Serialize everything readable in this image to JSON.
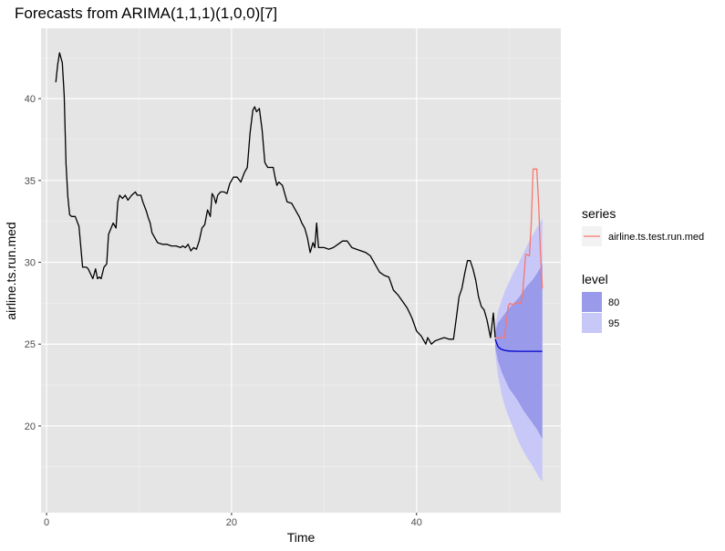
{
  "chart_data": {
    "type": "line",
    "title": "Forecasts from ARIMA(1,1,1)(1,0,0)[7]",
    "xlabel": "Time",
    "ylabel": "airline.ts.run.med",
    "xlim": [
      -0.6,
      55.6
    ],
    "ylim": [
      14.7,
      44.3
    ],
    "x_ticks": [
      0,
      20,
      40
    ],
    "y_ticks": [
      20,
      25,
      30,
      35,
      40
    ],
    "grid": true,
    "legend_position": "right",
    "colors": {
      "panel": "#e5e5e5",
      "grid_major": "#ffffff",
      "grid_minor": "#f2f2f2",
      "history": "#000000",
      "forecast_mean": "#0000cc",
      "test_series": "#f8766d",
      "band80": "#9a9aea",
      "band95": "#c8c8f8"
    },
    "series": [
      {
        "name": "",
        "role": "history",
        "x": [
          1,
          1.2,
          1.4,
          1.7,
          1.9,
          2.1,
          2.3,
          2.5,
          2.7,
          2.9,
          3.1,
          3.5,
          3.9,
          4.1,
          4.3,
          4.5,
          5,
          5.3,
          5.5,
          5.7,
          5.9,
          6.2,
          6.5,
          6.7,
          7.2,
          7.5,
          7.7,
          7.9,
          8.2,
          8.5,
          8.8,
          9.2,
          9.6,
          9.8,
          10.2,
          10.4,
          10.6,
          10.8,
          11,
          11.2,
          11.4,
          11.6,
          12,
          12.5,
          13,
          13.5,
          14,
          14.5,
          14.7,
          15,
          15.3,
          15.6,
          15.9,
          16.2,
          16.5,
          16.8,
          17.1,
          17.4,
          17.7,
          17.9,
          18.1,
          18.3,
          18.5,
          18.8,
          19.2,
          19.5,
          19.8,
          20.2,
          20.6,
          21,
          21.4,
          21.7,
          22,
          22.3,
          22.5,
          22.7,
          23,
          23.3,
          23.6,
          23.9,
          24.1,
          24.3,
          24.5,
          24.7,
          24.9,
          25.1,
          25.3,
          25.5,
          26,
          26.5,
          27,
          27.3,
          27.6,
          27.9,
          28.2,
          28.5,
          28.8,
          29,
          29.2,
          29.4,
          29.7,
          30,
          30.5,
          31,
          31.5,
          32,
          32.5,
          33,
          33.5,
          34,
          34.5,
          35,
          35.5,
          36,
          36.5,
          37,
          37.5,
          38,
          38.5,
          39,
          39.5,
          40,
          40.5,
          41,
          41.2,
          41.6,
          42,
          42.5,
          43,
          43.5,
          44,
          44.3,
          44.6,
          44.9,
          45.2,
          45.5,
          45.8,
          46.1,
          46.4,
          46.7,
          47,
          47.3,
          47.6,
          48,
          48.3,
          48.5
        ],
        "y": [
          41,
          42.1,
          42.8,
          42.2,
          40.2,
          36,
          34,
          32.9,
          32.8,
          32.8,
          32.8,
          32.2,
          29.7,
          29.7,
          29.7,
          29.6,
          29,
          29.6,
          29,
          29.1,
          29,
          29.7,
          29.9,
          31.7,
          32.4,
          32.1,
          33.7,
          34.1,
          33.9,
          34.1,
          33.8,
          34.1,
          34.3,
          34.1,
          34.1,
          33.7,
          33.4,
          33.1,
          32.7,
          32.4,
          31.8,
          31.6,
          31.2,
          31.1,
          31.1,
          31,
          31,
          30.9,
          31,
          30.9,
          31.1,
          30.7,
          30.9,
          30.8,
          31.3,
          32.1,
          32.3,
          33.2,
          32.8,
          34.2,
          34,
          33.6,
          34.1,
          34.3,
          34.3,
          34.2,
          34.8,
          35.2,
          35.2,
          34.9,
          35.5,
          35.8,
          37.9,
          39.3,
          39.5,
          39.2,
          39.4,
          38.1,
          36.1,
          35.8,
          35.8,
          35.8,
          35.8,
          35.2,
          34.7,
          34.9,
          34.8,
          34.7,
          33.7,
          33.6,
          33.1,
          32.8,
          32.4,
          32.1,
          31.5,
          30.6,
          31.2,
          30.9,
          32.4,
          30.9,
          30.9,
          30.9,
          30.8,
          30.9,
          31.1,
          31.3,
          31.3,
          30.9,
          30.8,
          30.7,
          30.6,
          30.4,
          29.9,
          29.4,
          29.2,
          29.1,
          28.3,
          28,
          27.6,
          27.2,
          26.6,
          25.8,
          25.5,
          25,
          25.4,
          25,
          25.2,
          25.3,
          25.4,
          25.3,
          25.3,
          26.6,
          27.9,
          28.4,
          29.3,
          30.1,
          30.1,
          29.6,
          28.9,
          27.9,
          27.3,
          27.1,
          26.5,
          25.4,
          26.9,
          25.4
        ]
      },
      {
        "name": "",
        "role": "forecast-mean",
        "x": [
          48.5,
          48.8,
          49.1,
          49.5,
          50,
          51,
          52,
          53,
          53.6
        ],
        "y": [
          25.3,
          24.85,
          24.7,
          24.62,
          24.58,
          24.56,
          24.56,
          24.56,
          24.56
        ]
      },
      {
        "name": "airline.ts.test.run.med",
        "role": "test",
        "x": [
          48.5,
          48.9,
          49.2,
          49.5,
          49.7,
          49.9,
          50.1,
          50.4,
          50.7,
          51,
          51.3,
          51.5,
          51.8,
          52.2,
          52.4,
          52.6,
          52.8,
          53,
          53.2,
          53.4,
          53.6
        ],
        "y": [
          25.4,
          25.4,
          25.4,
          25.4,
          26.3,
          27.3,
          27.5,
          27.4,
          27.5,
          27.5,
          27.5,
          28.3,
          30.5,
          30.4,
          32.3,
          35.7,
          35.7,
          35.7,
          33.5,
          30.5,
          28.4
        ]
      }
    ],
    "forecast_bands": {
      "x": [
        48.5,
        48.8,
        49.2,
        49.6,
        50,
        50.5,
        51,
        51.5,
        52,
        52.5,
        53,
        53.3,
        53.6
      ],
      "lo95": [
        24.5,
        23.1,
        21.9,
        21.1,
        20.5,
        19.8,
        19.1,
        18.5,
        18.0,
        17.6,
        17.1,
        16.8,
        16.6
      ],
      "lo80": [
        24.8,
        24.0,
        23.3,
        22.8,
        22.3,
        21.9,
        21.5,
        21.0,
        20.6,
        20.2,
        19.8,
        19.5,
        19.2
      ],
      "hi80": [
        25.8,
        26.3,
        26.6,
        26.9,
        27.2,
        27.5,
        27.8,
        28.2,
        28.6,
        28.9,
        29.3,
        29.6,
        29.9
      ],
      "hi95": [
        26.1,
        27.0,
        27.7,
        28.3,
        28.8,
        29.4,
        29.9,
        30.5,
        31.1,
        31.6,
        32.1,
        32.4,
        32.7
      ]
    },
    "legend": {
      "series_title": "series",
      "series_items": [
        "airline.ts.test.run.med"
      ],
      "level_title": "level",
      "level_items": [
        "80",
        "95"
      ]
    }
  }
}
